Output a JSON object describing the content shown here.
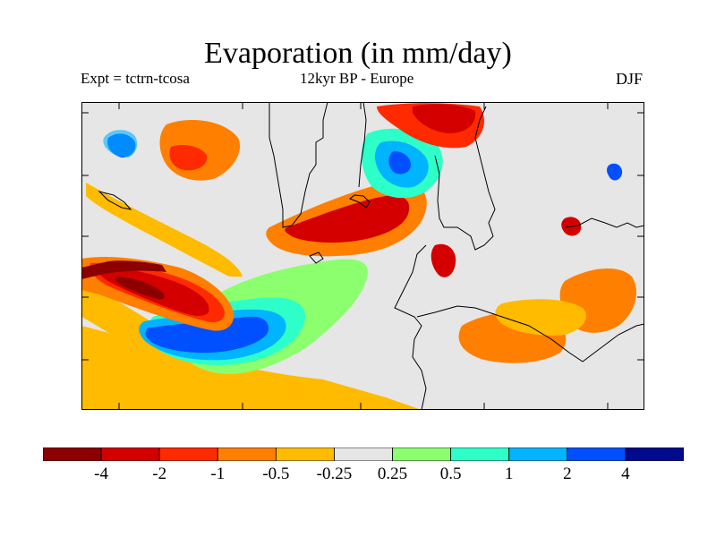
{
  "title": "Evaporation (in mm/day)",
  "subtitle_left": "Expt = tctrn-tcosa",
  "subtitle_center": "12kyr BP - Europe",
  "subtitle_right": "DJF",
  "colors": {
    "background_ocean_land": "#e6e6e6",
    "coastline": "#000000"
  },
  "colorbar": {
    "colors": [
      "#8c0000",
      "#d40000",
      "#ff2a00",
      "#ff7f00",
      "#ffbb00",
      "#e6e6e6",
      "#8cff6e",
      "#2effc8",
      "#00b4ff",
      "#0050ff",
      "#000a8c"
    ],
    "labels": [
      "-4",
      "-2",
      "-1",
      "-0.5",
      "-0.25",
      "0.25",
      "0.5",
      "1",
      "2",
      "4"
    ]
  }
}
